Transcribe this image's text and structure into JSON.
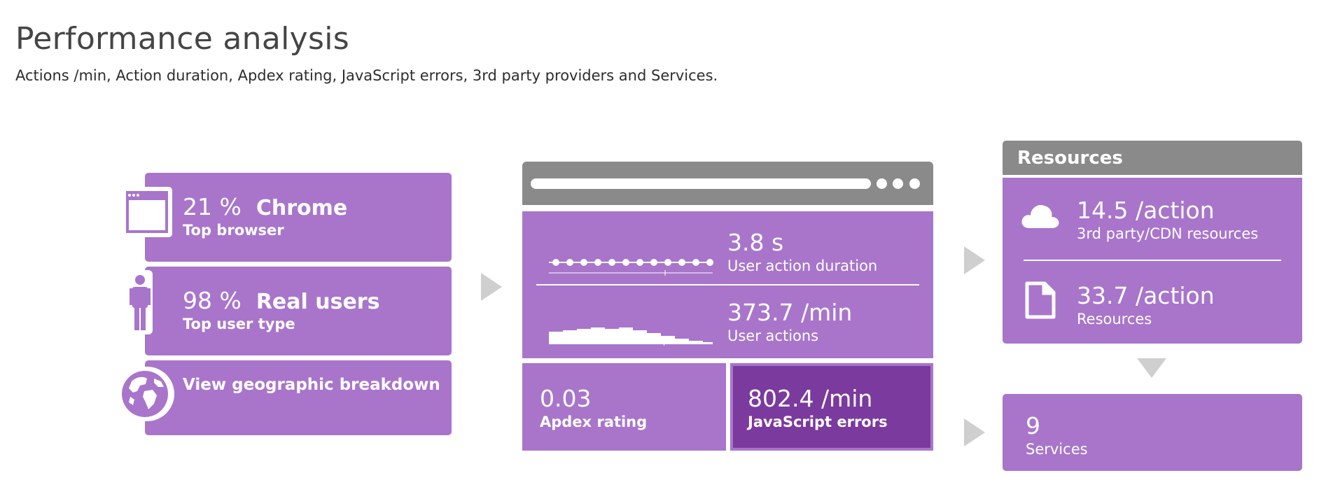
{
  "header": {
    "title": "Performance analysis",
    "subtitle": "Actions /min, Action duration, Apdex rating, JavaScript errors, 3rd party providers and Services."
  },
  "left": {
    "browser": {
      "value": "21 %",
      "name": "Chrome",
      "label": "Top browser",
      "icon": "browser-window-icon"
    },
    "user_type": {
      "value": "98 %",
      "name": "Real users",
      "label": "Top user type",
      "icon": "person-icon"
    },
    "geo": {
      "label": "View geographic breakdown",
      "icon": "globe-icon"
    }
  },
  "center": {
    "duration": {
      "value": "3.8 s",
      "label": "User action duration"
    },
    "actions": {
      "value": "373.7 /min",
      "label": "User actions"
    },
    "apdex": {
      "value": "0.03",
      "label": "Apdex rating"
    },
    "js_errors": {
      "value": "802.4 /min",
      "label": "JavaScript errors"
    }
  },
  "resources": {
    "header": "Resources",
    "third_party": {
      "value": "14.5 /action",
      "label": "3rd party/CDN resources",
      "icon": "cloud-icon"
    },
    "resources": {
      "value": "33.7 /action",
      "label": "Resources",
      "icon": "document-icon"
    }
  },
  "services": {
    "value": "9",
    "label": "Services"
  },
  "colors": {
    "tile": "#a875cb",
    "tile_dark": "#7b3a9e",
    "browser_chrome": "#8a8a8a",
    "arrow": "#cfcfcf",
    "text_dark": "#454545"
  }
}
